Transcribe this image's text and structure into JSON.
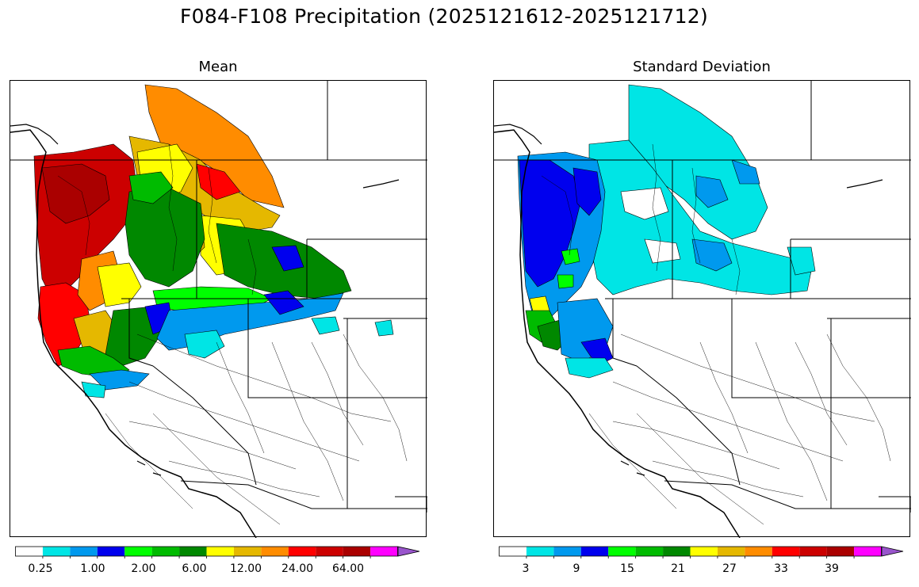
{
  "title": "F084-F108 Precipitation (2025121612-2025121712)",
  "panels": [
    {
      "name": "mean",
      "title": "Mean",
      "colorbar": {
        "colors": [
          "#ffffff",
          "#00e5e5",
          "#0099ee",
          "#0000ee",
          "#00ff00",
          "#00bb00",
          "#008800",
          "#ffff00",
          "#e5b800",
          "#ff8c00",
          "#ff0000",
          "#cc0000",
          "#aa0000",
          "#ff00ff",
          "#9955cc"
        ],
        "tick_labels": [
          "0.25",
          "1.00",
          "2.00",
          "6.00",
          "12.00",
          "24.00",
          "64.00"
        ],
        "extend": "max"
      }
    },
    {
      "name": "std",
      "title": "Standard Deviation",
      "colorbar": {
        "colors": [
          "#ffffff",
          "#00e5e5",
          "#0099ee",
          "#0000ee",
          "#00ff00",
          "#00bb00",
          "#008800",
          "#ffff00",
          "#e5b800",
          "#ff8c00",
          "#ff0000",
          "#cc0000",
          "#aa0000",
          "#ff00ff",
          "#9955cc"
        ],
        "tick_labels": [
          "3",
          "9",
          "15",
          "21",
          "27",
          "33",
          "39"
        ],
        "extend": "max"
      }
    }
  ]
}
